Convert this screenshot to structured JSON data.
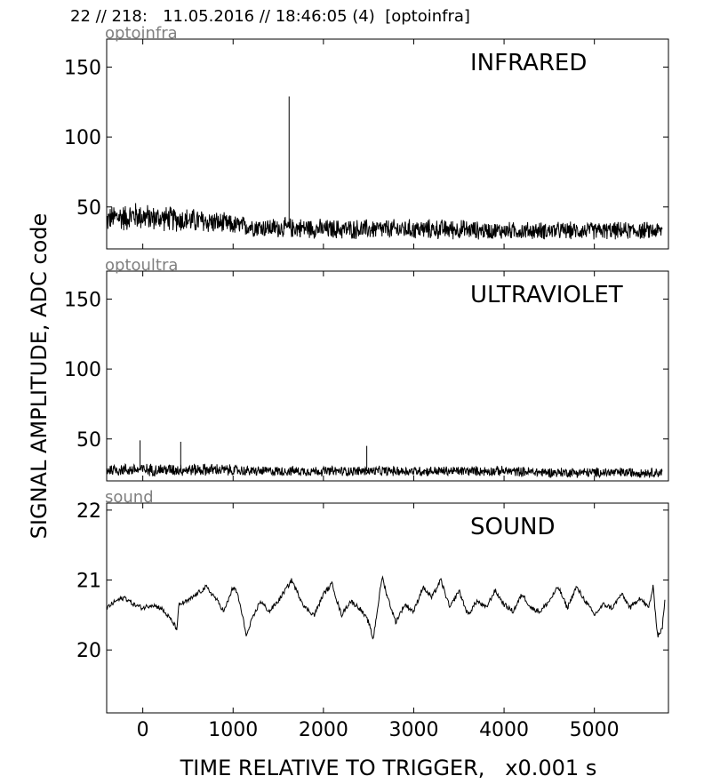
{
  "header": {
    "title": "22 // 218:   11.05.2016 // 18:46:05 (4)  [optoinfra]"
  },
  "colors": {
    "trace": "#000000",
    "panel_tag": "#808080",
    "background": "#ffffff"
  },
  "chart_data": [
    {
      "type": "line",
      "tag": "optoinfra",
      "title": "INFRARED",
      "xlabel": "TIME RELATIVE TO TRIGGER,   x0.001 s",
      "ylabel": "SIGNAL AMPLITUDE,  ADC code",
      "xlim": [
        -400,
        5820
      ],
      "ylim": [
        20,
        170
      ],
      "yticks": [
        50,
        100,
        150
      ],
      "xticks": [
        0,
        1000,
        2000,
        3000,
        4000,
        5000
      ],
      "show_x_tick_labels": false,
      "grid": false,
      "series": [
        {
          "x": [
            -400,
            -350,
            -250,
            -200,
            -100,
            0,
            100,
            200,
            400,
            600,
            800,
            1000,
            1200,
            1400,
            1600,
            1620,
            1800,
            2000,
            2400,
            2800,
            3200,
            3500,
            3800,
            4200,
            4600,
            5000,
            5400,
            5750
          ],
          "center": [
            40,
            42,
            43,
            42,
            44,
            43,
            42,
            42,
            41,
            40,
            39,
            37,
            36,
            35,
            35,
            35,
            35,
            34,
            34,
            34,
            34,
            34,
            33,
            33,
            33,
            33,
            33,
            33
          ],
          "band": [
            10,
            10,
            11,
            11,
            11,
            11,
            10,
            10,
            10,
            10,
            9,
            8,
            8,
            8,
            8,
            8,
            8,
            8,
            8,
            8,
            8,
            8,
            7,
            7,
            7,
            7,
            7,
            7
          ]
        }
      ],
      "annotations": [
        {
          "x": 1620,
          "y": 129,
          "kind": "spike"
        }
      ]
    },
    {
      "type": "line",
      "tag": "optoultra",
      "title": "ULTRAVIOLET",
      "xlim": [
        -400,
        5820
      ],
      "ylim": [
        20,
        170
      ],
      "yticks": [
        50,
        100,
        150
      ],
      "xticks": [
        0,
        1000,
        2000,
        3000,
        4000,
        5000
      ],
      "show_x_tick_labels": false,
      "grid": false,
      "series": [
        {
          "x": [
            -400,
            0,
            400,
            800,
            1200,
            1600,
            2000,
            2500,
            3000,
            3500,
            4000,
            4500,
            5000,
            5500,
            5750
          ],
          "center": [
            28,
            28,
            28,
            28,
            27,
            27,
            27,
            27,
            27,
            27,
            27,
            26,
            26,
            26,
            26
          ],
          "band": [
            5,
            5,
            5,
            5,
            4,
            4,
            4,
            4,
            4,
            4,
            4,
            4,
            4,
            4,
            4
          ]
        }
      ],
      "annotations": [
        {
          "x": -30,
          "y": 49,
          "kind": "spike"
        },
        {
          "x": 420,
          "y": 48,
          "kind": "spike"
        },
        {
          "x": 2480,
          "y": 45,
          "kind": "spike"
        }
      ]
    },
    {
      "type": "line",
      "tag": "sound",
      "title": "SOUND",
      "xlim": [
        -400,
        5820
      ],
      "ylim": [
        19.1,
        22.1
      ],
      "yticks": [
        20,
        21,
        22
      ],
      "xticks": [
        0,
        1000,
        2000,
        3000,
        4000,
        5000
      ],
      "show_x_tick_labels": true,
      "xticklabels": [
        "0",
        "1000",
        "2000",
        "3000",
        "4000",
        "5000"
      ],
      "grid": false,
      "series": [
        {
          "x": [
            -400,
            -300,
            -200,
            -100,
            0,
            100,
            200,
            300,
            380,
            400,
            500,
            600,
            700,
            800,
            900,
            1000,
            1050,
            1150,
            1200,
            1300,
            1400,
            1500,
            1600,
            1650,
            1700,
            1800,
            1900,
            2000,
            2100,
            2150,
            2200,
            2300,
            2400,
            2500,
            2550,
            2600,
            2650,
            2700,
            2800,
            2900,
            3000,
            3100,
            3200,
            3300,
            3400,
            3500,
            3600,
            3700,
            3800,
            3900,
            4000,
            4100,
            4200,
            4300,
            4400,
            4500,
            4600,
            4700,
            4800,
            4900,
            5000,
            5100,
            5200,
            5300,
            5400,
            5500,
            5600,
            5650,
            5700,
            5750,
            5780
          ],
          "y": [
            20.6,
            20.7,
            20.75,
            20.65,
            20.6,
            20.65,
            20.6,
            20.45,
            20.3,
            20.65,
            20.7,
            20.8,
            20.9,
            20.75,
            20.55,
            20.9,
            20.8,
            20.2,
            20.4,
            20.7,
            20.55,
            20.7,
            20.9,
            21.0,
            20.85,
            20.6,
            20.5,
            20.8,
            20.95,
            20.7,
            20.5,
            20.7,
            20.6,
            20.4,
            20.15,
            20.6,
            21.05,
            20.8,
            20.4,
            20.65,
            20.55,
            20.9,
            20.75,
            21.0,
            20.6,
            20.85,
            20.5,
            20.7,
            20.6,
            20.85,
            20.65,
            20.55,
            20.8,
            20.6,
            20.55,
            20.7,
            20.9,
            20.6,
            20.9,
            20.7,
            20.5,
            20.65,
            20.6,
            20.8,
            20.6,
            20.75,
            20.6,
            20.9,
            20.2,
            20.3,
            20.7
          ]
        }
      ]
    }
  ]
}
